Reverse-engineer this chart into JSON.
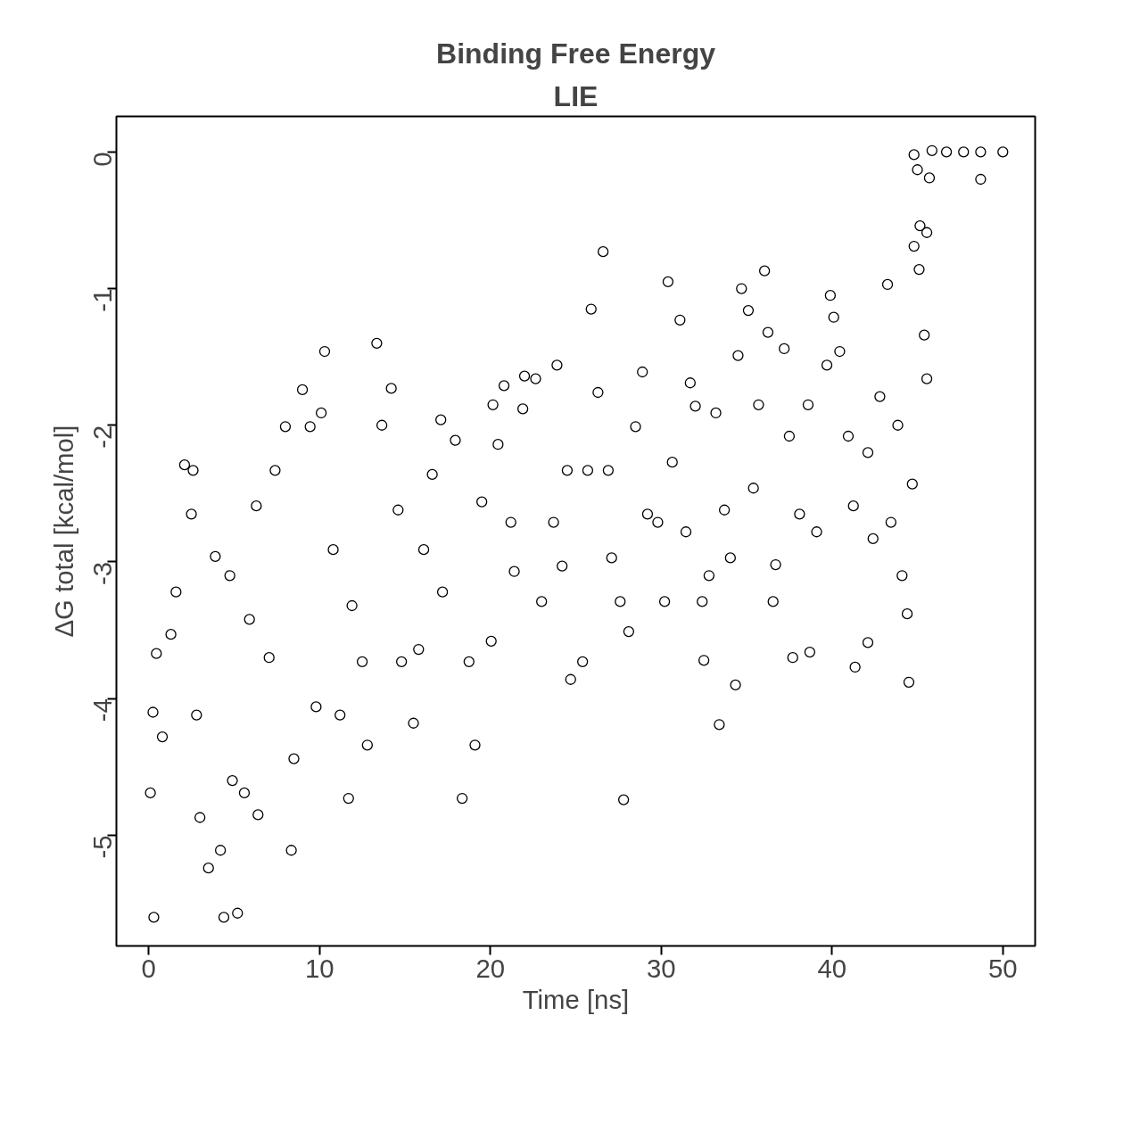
{
  "chart_data": {
    "type": "scatter",
    "title": "Binding Free Energy",
    "subtitle": "LIE",
    "xlabel": "Time [ns]",
    "ylabel": "ΔG total [kcal/mol]",
    "xlim": [
      -1.89,
      51.89
    ],
    "ylim": [
      -5.81,
      0.26
    ],
    "xticks": [
      0,
      10,
      20,
      30,
      40,
      50
    ],
    "yticks": [
      {
        "value": 0,
        "label": "0"
      },
      {
        "value": -1,
        "label": "-1"
      },
      {
        "value": -2,
        "label": "-2"
      },
      {
        "value": -3,
        "label": "-3"
      },
      {
        "value": -4,
        "label": "-4"
      },
      {
        "value": -5,
        "label": "-5"
      }
    ],
    "grid": false,
    "marker": "circle",
    "series": [
      {
        "color": "#000000",
        "x": [
          0.1,
          0.3,
          0.25,
          0.45,
          0.8,
          1.3,
          1.6,
          2.1,
          2.5,
          2.6,
          2.8,
          3.0,
          3.5,
          3.9,
          4.2,
          4.4,
          4.75,
          4.9,
          5.2,
          5.6,
          5.9,
          6.3,
          6.4,
          7.05,
          7.4,
          8.0,
          8.35,
          8.5,
          9.0,
          9.45,
          9.8,
          10.1,
          10.3,
          10.8,
          11.2,
          11.7,
          11.9,
          12.5,
          12.8,
          13.35,
          13.65,
          14.2,
          14.6,
          14.8,
          15.5,
          15.8,
          16.1,
          16.6,
          17.1,
          17.2,
          17.95,
          18.35,
          18.75,
          19.1,
          19.5,
          20.05,
          20.15,
          20.45,
          20.8,
          21.2,
          21.4,
          21.9,
          22.0,
          22.65,
          23.0,
          23.7,
          23.9,
          24.2,
          24.5,
          24.7,
          25.4,
          25.7,
          25.9,
          26.3,
          26.6,
          26.9,
          27.1,
          27.6,
          27.8,
          28.1,
          28.5,
          28.9,
          29.2,
          29.8,
          30.2,
          30.4,
          30.65,
          31.1,
          31.45,
          31.7,
          32.0,
          32.4,
          32.5,
          32.8,
          33.2,
          33.4,
          33.7,
          34.05,
          34.35,
          34.5,
          34.7,
          35.1,
          35.4,
          35.7,
          36.05,
          36.25,
          36.55,
          36.7,
          37.2,
          37.5,
          37.7,
          38.1,
          38.6,
          38.7,
          39.1,
          39.7,
          39.9,
          40.1,
          40.45,
          40.95,
          41.25,
          41.35,
          42.1,
          42.1,
          42.4,
          42.8,
          43.25,
          43.45,
          43.85,
          44.1,
          44.4,
          44.5,
          44.7,
          44.8,
          44.8,
          45.0,
          45.1,
          45.15,
          45.4,
          45.55,
          45.55,
          45.7,
          45.85,
          46.7,
          47.7,
          48.7,
          48.7,
          50
        ],
        "values": [
          -4.69,
          -5.6,
          -4.1,
          -3.67,
          -4.28,
          -3.53,
          -3.22,
          -2.29,
          -2.65,
          -2.33,
          -4.12,
          -4.87,
          -5.24,
          -2.96,
          -5.11,
          -5.6,
          -3.1,
          -4.6,
          -5.57,
          -4.69,
          -3.42,
          -2.59,
          -4.85,
          -3.7,
          -2.33,
          -2.01,
          -5.11,
          -4.44,
          -1.74,
          -2.01,
          -4.06,
          -1.91,
          -1.46,
          -2.91,
          -4.12,
          -4.73,
          -3.32,
          -3.73,
          -4.34,
          -1.4,
          -2.0,
          -1.73,
          -2.62,
          -3.73,
          -4.18,
          -3.64,
          -2.91,
          -2.36,
          -1.96,
          -3.22,
          -2.11,
          -4.73,
          -3.73,
          -4.34,
          -2.56,
          -3.58,
          -1.85,
          -2.14,
          -1.71,
          -2.71,
          -3.07,
          -1.88,
          -1.64,
          -1.66,
          -3.29,
          -2.71,
          -1.56,
          -3.03,
          -2.33,
          -3.86,
          -3.73,
          -2.33,
          -1.15,
          -1.76,
          -0.73,
          -2.33,
          -2.97,
          -3.29,
          -4.74,
          -3.51,
          -2.01,
          -1.61,
          -2.65,
          -2.71,
          -3.29,
          -0.95,
          -2.27,
          -1.23,
          -2.78,
          -1.69,
          -1.86,
          -3.29,
          -3.72,
          -3.1,
          -1.91,
          -4.19,
          -2.62,
          -2.97,
          -3.9,
          -1.49,
          -1.0,
          -1.16,
          -2.46,
          -1.85,
          -0.87,
          -1.32,
          -3.29,
          -3.02,
          -1.44,
          -2.08,
          -3.7,
          -2.65,
          -1.85,
          -3.66,
          -2.78,
          -1.56,
          -1.05,
          -1.21,
          -1.46,
          -2.08,
          -2.59,
          -3.77,
          -3.59,
          -2.2,
          -2.83,
          -1.79,
          -0.97,
          -2.71,
          -2.0,
          -3.1,
          -3.38,
          -3.88,
          -2.43,
          -0.02,
          -0.69,
          -0.13,
          -0.86,
          -0.54,
          -1.34,
          -1.66,
          -0.59,
          -0.19,
          0.01,
          0,
          0,
          0,
          -0.2,
          0
        ]
      }
    ]
  }
}
